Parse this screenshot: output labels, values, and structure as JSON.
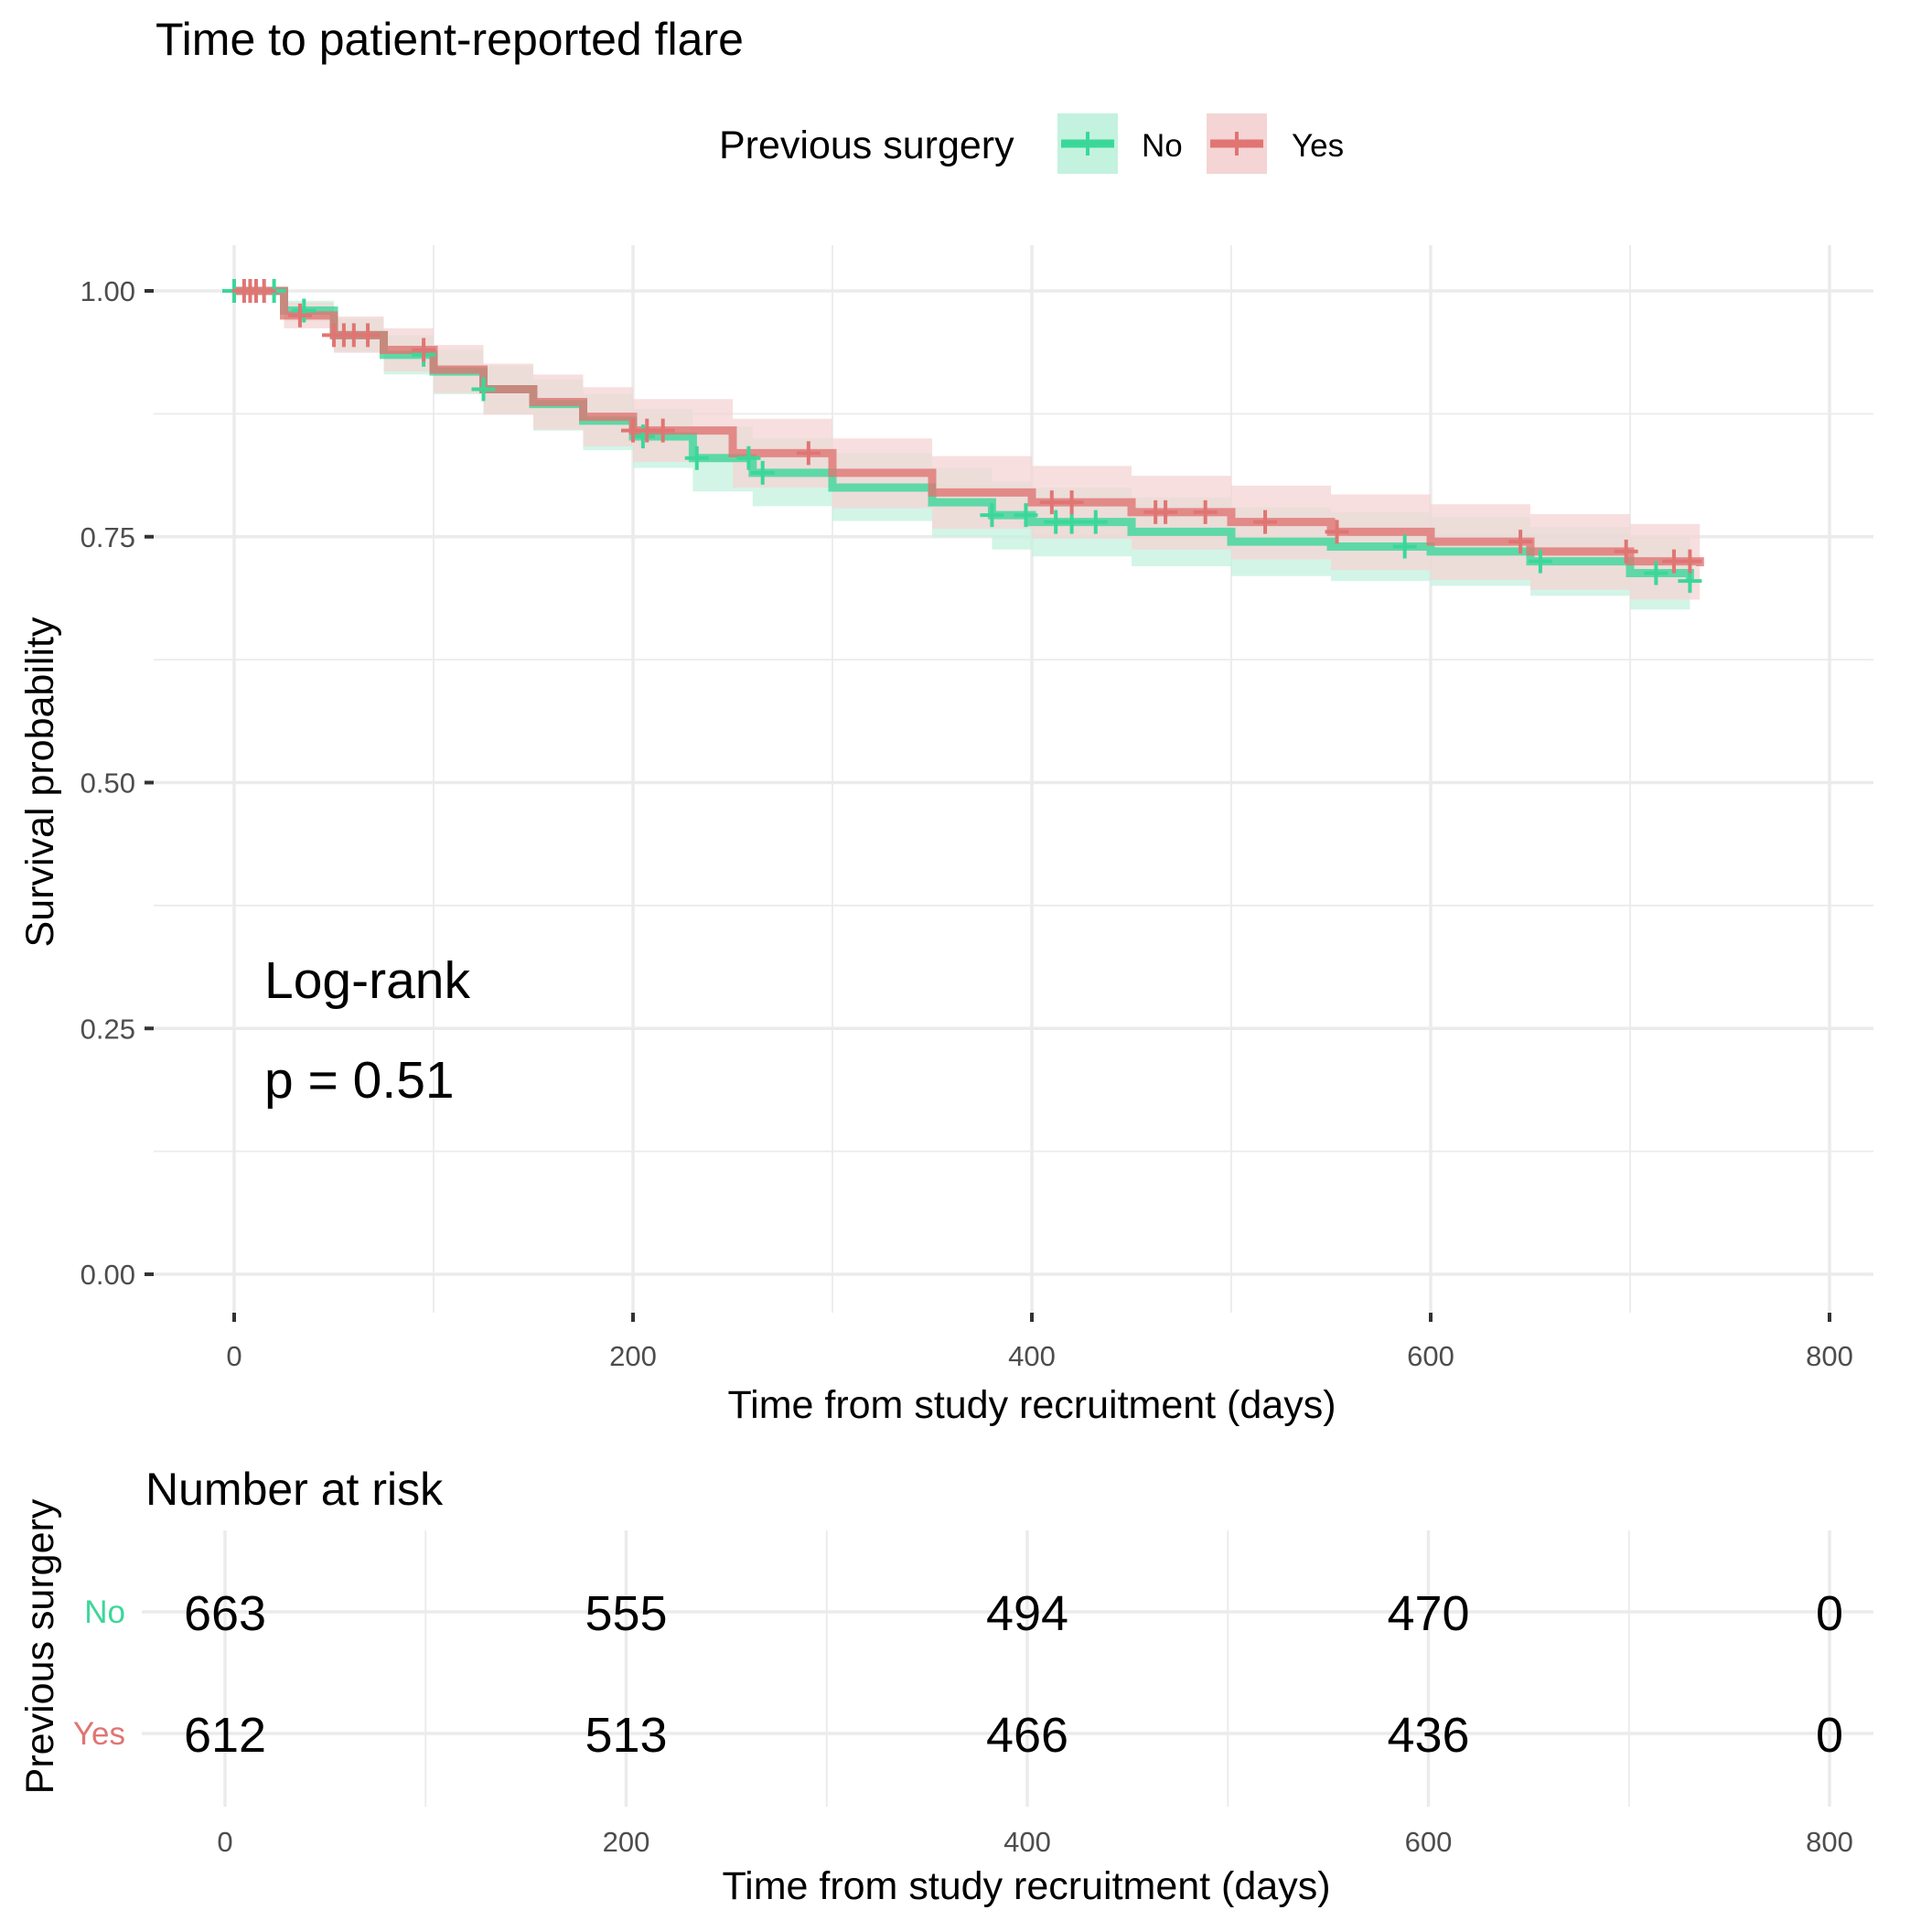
{
  "chart_data": {
    "type": "line",
    "subtype": "kaplan-meier",
    "title": "Time to patient-reported flare",
    "xlabel": "Time from study recruitment (days)",
    "ylabel": "Survival probability",
    "xlim": [
      0,
      800
    ],
    "ylim": [
      0,
      1
    ],
    "x_ticks": [
      0,
      200,
      400,
      600,
      800
    ],
    "x_tick_labels": [
      "0",
      "200",
      "400",
      "600",
      "800"
    ],
    "y_ticks": [
      0,
      0.25,
      0.5,
      0.75,
      1.0
    ],
    "y_tick_labels": [
      "0.00",
      "0.25",
      "0.50",
      "0.75",
      "1.00"
    ],
    "grid": true,
    "legend": {
      "title": "Previous surgery",
      "position": "top",
      "entries": [
        {
          "label": "No",
          "color": "#3bd799"
        },
        {
          "label": "Yes",
          "color": "#e07573"
        }
      ]
    },
    "annotation": {
      "line1": "Log-rank",
      "line2": "p = 0.51"
    },
    "series": [
      {
        "name": "No",
        "color": "#3bd799",
        "band_color": "#c3f2df",
        "x": [
          0,
          25,
          50,
          75,
          100,
          125,
          150,
          175,
          200,
          230,
          260,
          300,
          350,
          380,
          400,
          450,
          500,
          550,
          600,
          650,
          700,
          730
        ],
        "y": [
          1.0,
          0.98,
          0.955,
          0.935,
          0.918,
          0.9,
          0.885,
          0.868,
          0.852,
          0.83,
          0.815,
          0.8,
          0.785,
          0.772,
          0.765,
          0.755,
          0.745,
          0.74,
          0.735,
          0.725,
          0.713,
          0.705
        ],
        "lower": [
          1.0,
          0.969,
          0.938,
          0.915,
          0.895,
          0.875,
          0.858,
          0.838,
          0.82,
          0.796,
          0.781,
          0.766,
          0.75,
          0.737,
          0.73,
          0.72,
          0.71,
          0.705,
          0.7,
          0.69,
          0.676,
          0.67
        ],
        "upper": [
          1.0,
          0.99,
          0.972,
          0.955,
          0.94,
          0.924,
          0.91,
          0.895,
          0.88,
          0.862,
          0.85,
          0.835,
          0.82,
          0.806,
          0.8,
          0.79,
          0.78,
          0.775,
          0.77,
          0.76,
          0.75,
          0.742
        ],
        "censor_times": [
          0,
          20,
          35,
          95,
          125,
          205,
          232,
          258,
          265,
          380,
          397,
          412,
          420,
          432,
          587,
          655,
          713,
          730
        ]
      },
      {
        "name": "Yes",
        "color": "#e07573",
        "band_color": "#f4d4d4",
        "x": [
          0,
          25,
          50,
          75,
          100,
          125,
          150,
          175,
          200,
          250,
          300,
          350,
          400,
          450,
          500,
          550,
          600,
          650,
          700,
          735
        ],
        "y": [
          1.0,
          0.975,
          0.955,
          0.94,
          0.92,
          0.9,
          0.887,
          0.872,
          0.858,
          0.835,
          0.815,
          0.795,
          0.785,
          0.775,
          0.765,
          0.755,
          0.745,
          0.735,
          0.725,
          0.72
        ],
        "lower": [
          1.0,
          0.962,
          0.937,
          0.918,
          0.896,
          0.874,
          0.859,
          0.842,
          0.826,
          0.8,
          0.779,
          0.758,
          0.748,
          0.737,
          0.727,
          0.716,
          0.706,
          0.696,
          0.686,
          0.68
        ],
        "upper": [
          1.0,
          0.988,
          0.974,
          0.962,
          0.945,
          0.926,
          0.915,
          0.902,
          0.89,
          0.87,
          0.85,
          0.832,
          0.822,
          0.812,
          0.802,
          0.793,
          0.783,
          0.773,
          0.763,
          0.758
        ],
        "censor_times": [
          5,
          8,
          11,
          15,
          33,
          50,
          55,
          60,
          67,
          95,
          200,
          207,
          215,
          288,
          410,
          420,
          462,
          467,
          487,
          517,
          553,
          645,
          698,
          722,
          730
        ]
      }
    ],
    "risk_table": {
      "title": "Number at risk",
      "ylabel": "Previous surgery",
      "xlabel": "Time from study recruitment (days)",
      "times": [
        0,
        200,
        400,
        600,
        800
      ],
      "time_labels": [
        "0",
        "200",
        "400",
        "600",
        "800"
      ],
      "rows": [
        {
          "label": "No",
          "color": "#3bd799",
          "values": [
            "663",
            "555",
            "494",
            "470",
            "0"
          ]
        },
        {
          "label": "Yes",
          "color": "#e07573",
          "values": [
            "612",
            "513",
            "466",
            "436",
            "0"
          ]
        }
      ]
    }
  }
}
